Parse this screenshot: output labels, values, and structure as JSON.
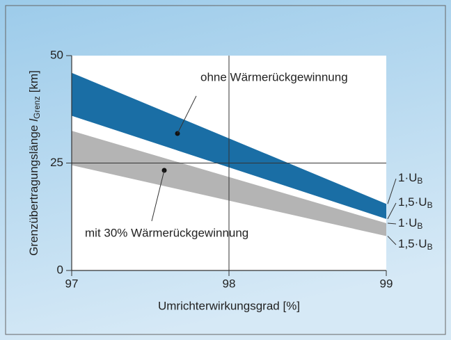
{
  "chart_data": {
    "type": "band",
    "x_label": "Umrichterwirkungsgrad [%]",
    "y_label": {
      "text": "Grenzübertragungslänge",
      "symbol": "l",
      "sub": "Grenz",
      "unit": "[km]"
    },
    "x": [
      97,
      99
    ],
    "xlim": [
      97,
      99
    ],
    "xticks": [
      97,
      98,
      99
    ],
    "ylim": [
      0,
      50
    ],
    "yticks": [
      0,
      25,
      50
    ],
    "grid": true,
    "groups": [
      {
        "annotation": "ohne Wärmerückgewinnung",
        "color": "#1a6ea5",
        "lines": [
          {
            "label": {
              "text": "1·U",
              "sub": "B"
            },
            "values": [
              46,
              15.5
            ]
          },
          {
            "label": {
              "text": "1,5·U",
              "sub": "B"
            },
            "values": [
              36,
              12
            ]
          }
        ]
      },
      {
        "annotation": "mit 30% Wärmerückgewinnung",
        "color": "#b4b4b4",
        "lines": [
          {
            "label": {
              "text": "1·U",
              "sub": "B"
            },
            "values": [
              32.5,
              11
            ]
          },
          {
            "label": {
              "text": "1,5·U",
              "sub": "B"
            },
            "values": [
              24.5,
              8
            ]
          }
        ]
      }
    ]
  }
}
